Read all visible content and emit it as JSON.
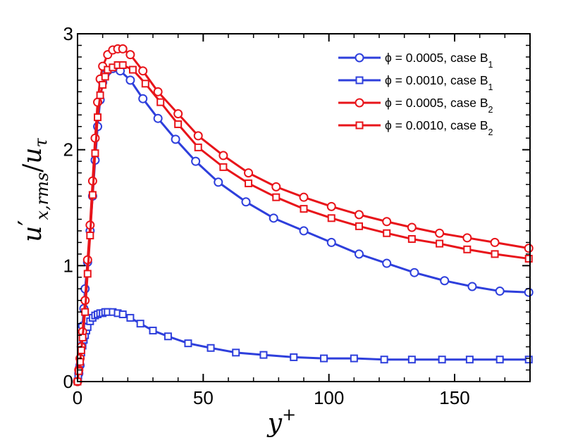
{
  "chart_data": {
    "type": "line",
    "title": "",
    "xlabel": "y",
    "xlabel_superscript": "+",
    "ylabel_base": "u",
    "ylabel_prime": "′",
    "ylabel_sub": "x,rms",
    "ylabel_slash": "/",
    "ylabel_base2": "u",
    "ylabel_sub2": "τ",
    "xlim": [
      0,
      180
    ],
    "ylim": [
      0,
      3
    ],
    "xticks": [
      0,
      50,
      100,
      150
    ],
    "xtick_labels": [
      "0",
      "50",
      "100",
      "150"
    ],
    "yticks": [
      0,
      1,
      2,
      3
    ],
    "ytick_labels": [
      "0",
      "1",
      "2",
      "3"
    ],
    "legend_position": "top-right",
    "series": [
      {
        "name": "ϕ = 0.0005, case B",
        "name_sub": "1",
        "color": "#2e3fdc",
        "marker": "circle",
        "x": [
          0,
          0.5,
          1,
          1.5,
          2,
          2.5,
          3,
          4,
          5,
          6,
          7,
          8,
          9,
          10,
          11,
          12,
          14,
          17,
          21,
          26,
          32,
          39,
          47,
          56,
          67,
          78,
          90,
          101,
          112,
          123,
          134,
          146,
          157,
          168,
          179.5
        ],
        "y": [
          0,
          0.07,
          0.14,
          0.3,
          0.48,
          0.63,
          0.8,
          1.03,
          1.3,
          1.6,
          1.91,
          2.2,
          2.43,
          2.58,
          2.65,
          2.68,
          2.7,
          2.68,
          2.6,
          2.44,
          2.27,
          2.09,
          1.9,
          1.72,
          1.55,
          1.41,
          1.3,
          1.2,
          1.1,
          1.02,
          0.94,
          0.87,
          0.82,
          0.78,
          0.77
        ]
      },
      {
        "name": "ϕ = 0.0010, case B",
        "name_sub": "1",
        "color": "#2e3fdc",
        "marker": "square",
        "x": [
          0,
          0.3,
          0.6,
          1,
          1.5,
          2,
          2.5,
          3,
          3.5,
          4,
          5,
          6,
          7,
          8,
          9,
          10,
          11,
          12,
          14,
          16,
          18,
          21,
          25,
          30,
          36,
          44,
          53,
          63,
          74,
          86,
          98,
          110,
          122,
          133,
          145,
          156,
          168,
          179.5
        ],
        "y": [
          0,
          0.05,
          0.1,
          0.17,
          0.25,
          0.31,
          0.36,
          0.4,
          0.44,
          0.47,
          0.52,
          0.55,
          0.57,
          0.58,
          0.59,
          0.59,
          0.6,
          0.6,
          0.6,
          0.59,
          0.58,
          0.55,
          0.5,
          0.44,
          0.39,
          0.33,
          0.29,
          0.25,
          0.23,
          0.21,
          0.2,
          0.2,
          0.19,
          0.19,
          0.19,
          0.19,
          0.19,
          0.19
        ]
      },
      {
        "name": "ϕ = 0.0005, case B",
        "name_sub": "2",
        "color": "#e8141a",
        "marker": "circle",
        "x": [
          0,
          0.5,
          1,
          1.5,
          2,
          3,
          4,
          5,
          6,
          7,
          8,
          9,
          10,
          12,
          14,
          16,
          18,
          21,
          26,
          32,
          40,
          48,
          58,
          68,
          79,
          90,
          101,
          112,
          123,
          133,
          144,
          155,
          166,
          179.5
        ],
        "y": [
          0,
          0.1,
          0.2,
          0.3,
          0.43,
          0.7,
          1.05,
          1.35,
          1.73,
          2.1,
          2.41,
          2.61,
          2.72,
          2.82,
          2.86,
          2.87,
          2.87,
          2.82,
          2.68,
          2.5,
          2.31,
          2.12,
          1.95,
          1.8,
          1.68,
          1.59,
          1.51,
          1.44,
          1.38,
          1.33,
          1.28,
          1.24,
          1.2,
          1.15
        ]
      },
      {
        "name": "ϕ = 0.0010, case B",
        "name_sub": "2",
        "color": "#e8141a",
        "marker": "square",
        "x": [
          0,
          0.5,
          1,
          1.5,
          2,
          3,
          4,
          5,
          6,
          7,
          8,
          9,
          10,
          11,
          12,
          14,
          16,
          18,
          22,
          27,
          33,
          40,
          48,
          58,
          68,
          79,
          90,
          101,
          112,
          123,
          133,
          144,
          155,
          166,
          179.5
        ],
        "y": [
          0,
          0.09,
          0.17,
          0.27,
          0.38,
          0.6,
          0.93,
          1.26,
          1.61,
          1.97,
          2.28,
          2.47,
          2.56,
          2.63,
          2.69,
          2.71,
          2.73,
          2.73,
          2.69,
          2.57,
          2.41,
          2.22,
          2.02,
          1.85,
          1.71,
          1.59,
          1.49,
          1.41,
          1.34,
          1.28,
          1.23,
          1.19,
          1.14,
          1.1,
          1.06
        ]
      }
    ]
  }
}
